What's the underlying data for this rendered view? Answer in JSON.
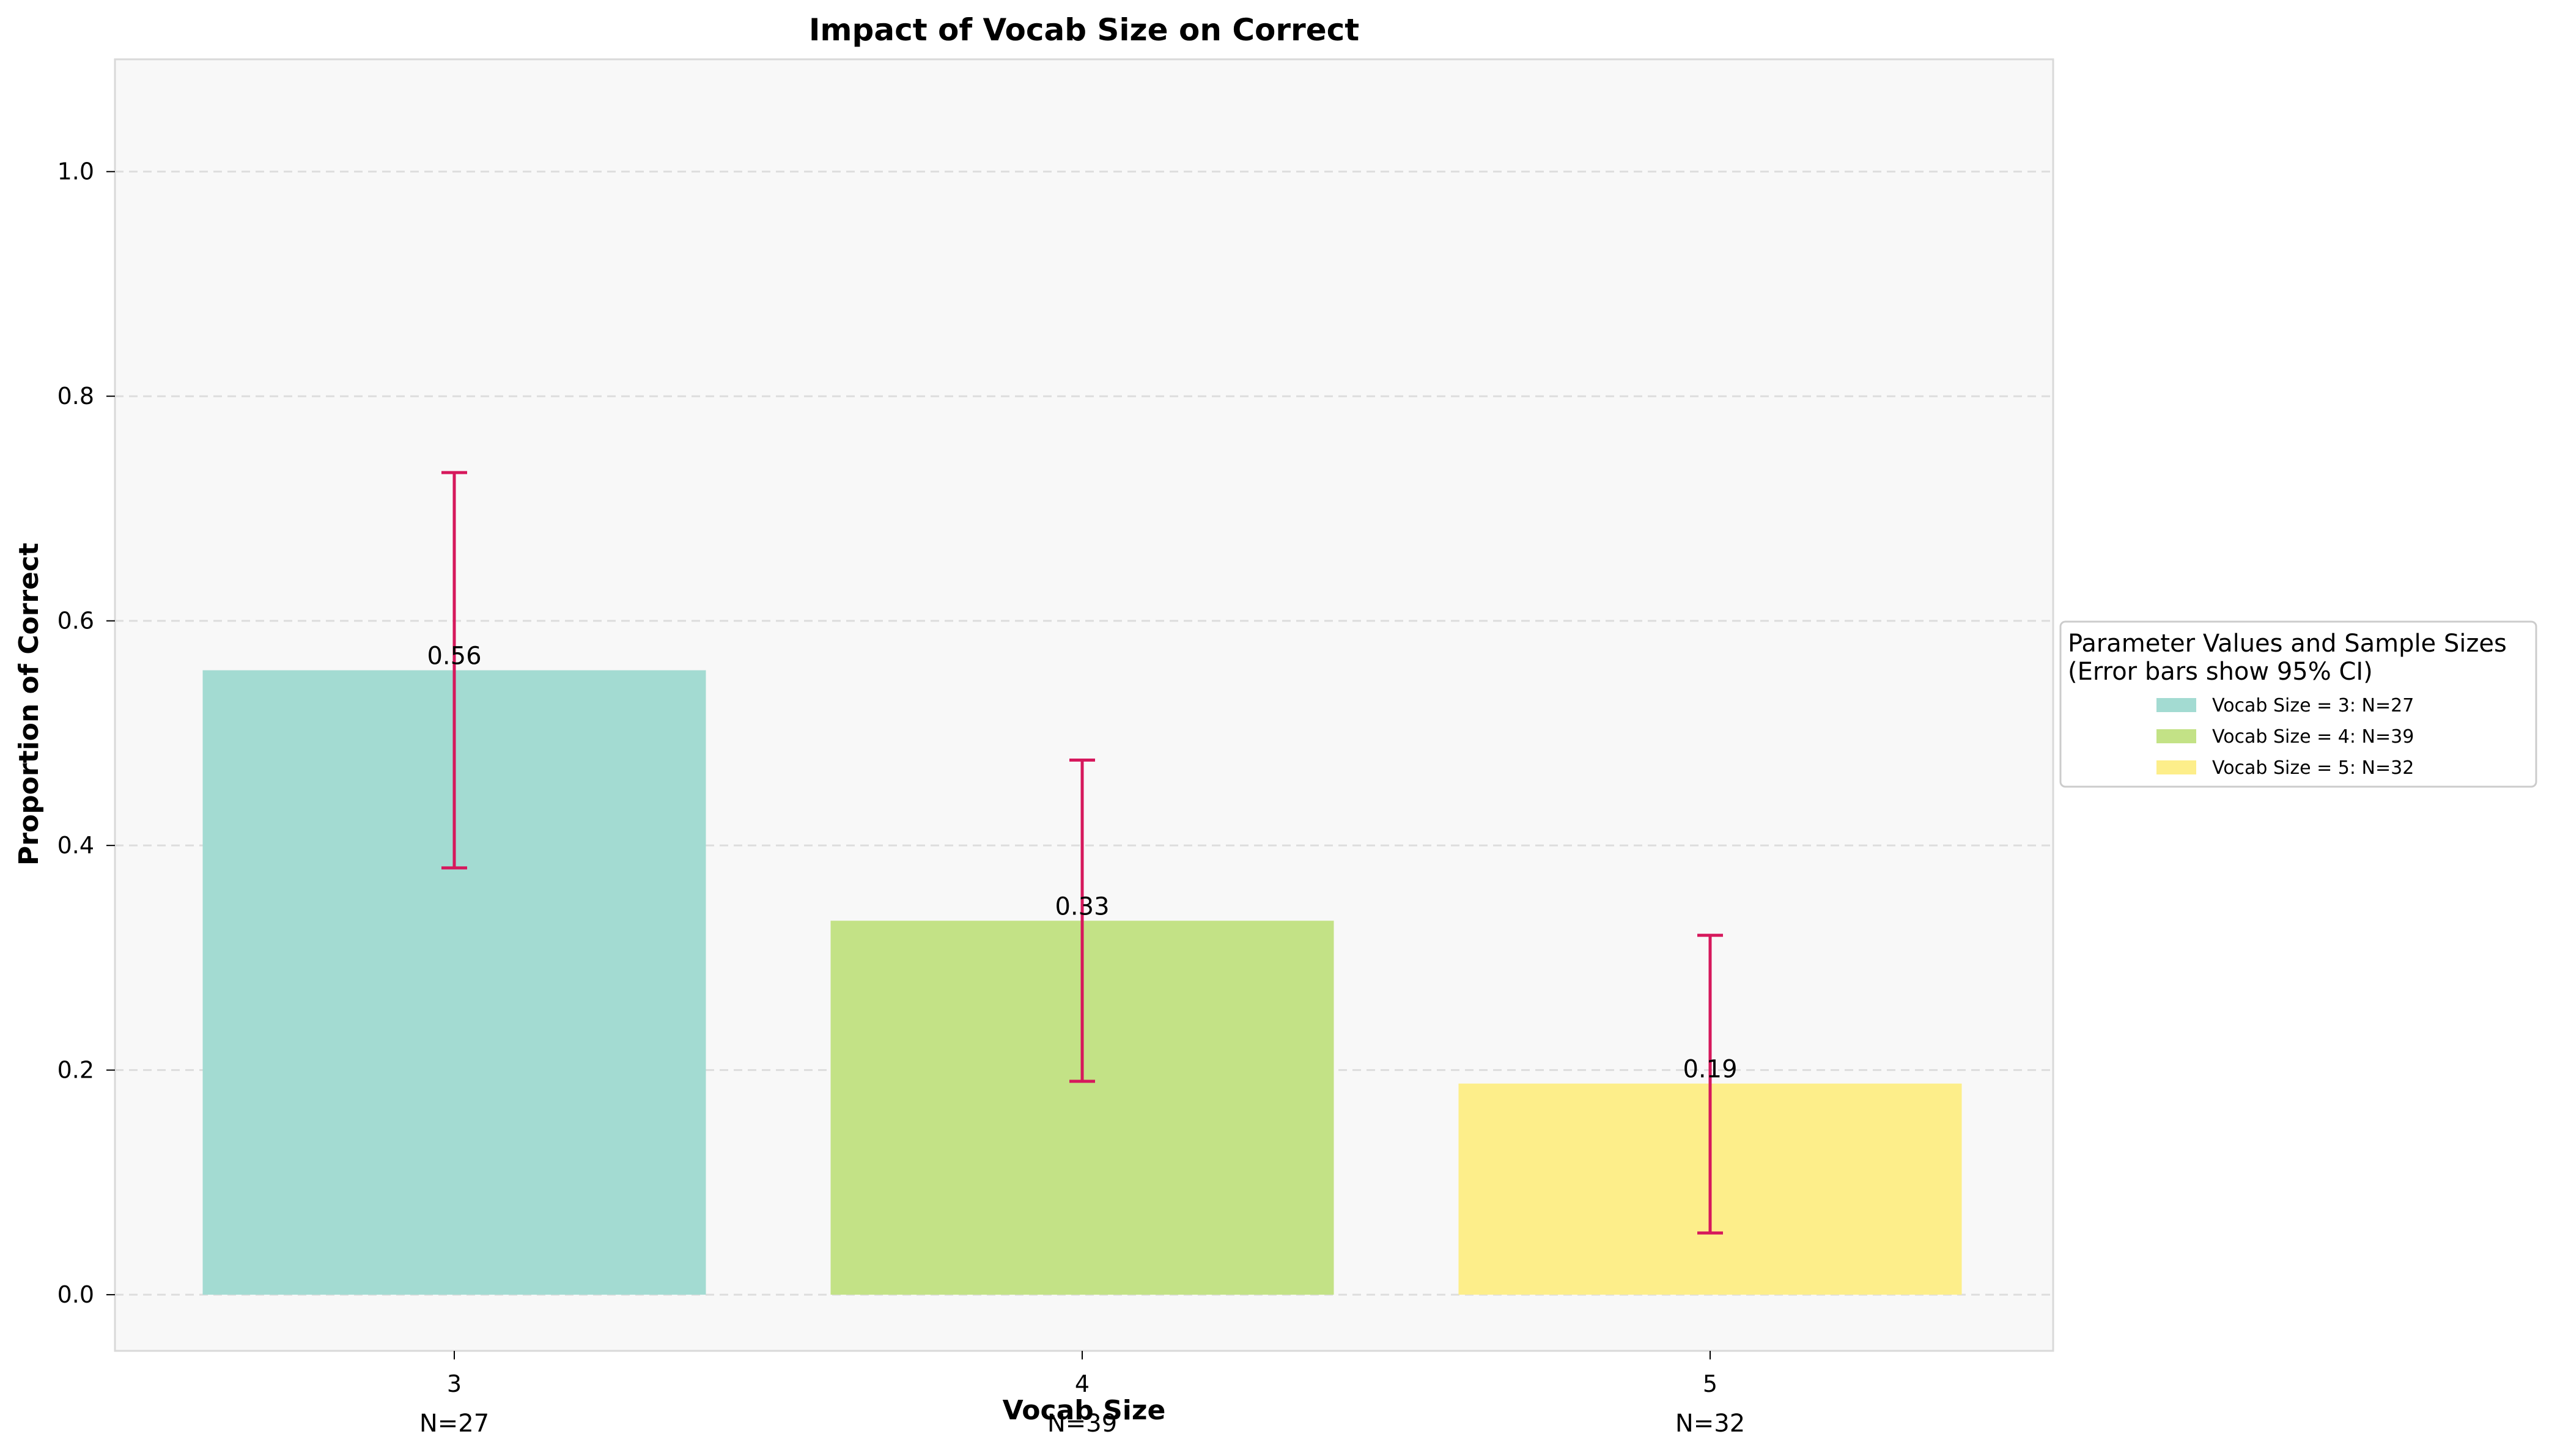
{
  "chart_data": {
    "type": "bar",
    "title": "Impact of Vocab Size on Correct",
    "xlabel": "Vocab Size",
    "ylabel": "Proportion of Correct",
    "categories": [
      "3",
      "4",
      "5"
    ],
    "values": [
      0.556,
      0.333,
      0.188
    ],
    "value_labels": [
      "0.56",
      "0.33",
      "0.19"
    ],
    "error_low": [
      0.38,
      0.19,
      0.055
    ],
    "error_high": [
      0.732,
      0.476,
      0.32
    ],
    "sample_labels": [
      "N=27",
      "N=39",
      "N=32"
    ],
    "bar_colors": [
      "#a3dbd2",
      "#c3e286",
      "#fdee8a"
    ],
    "error_color": "#d6185c",
    "ylim": [
      -0.05,
      1.1
    ],
    "yticks": [
      0.0,
      0.2,
      0.4,
      0.6,
      0.8,
      1.0
    ],
    "ytick_labels": [
      "0.0",
      "0.2",
      "0.4",
      "0.6",
      "0.8",
      "1.0"
    ],
    "grid": true,
    "legend_position": "right",
    "legend": {
      "title_line1": "Parameter Values and Sample Sizes",
      "title_line2": "(Error bars show 95% CI)",
      "entries": [
        "Vocab Size = 3: N=27",
        "Vocab Size = 4: N=39",
        "Vocab Size = 5: N=32"
      ]
    }
  }
}
